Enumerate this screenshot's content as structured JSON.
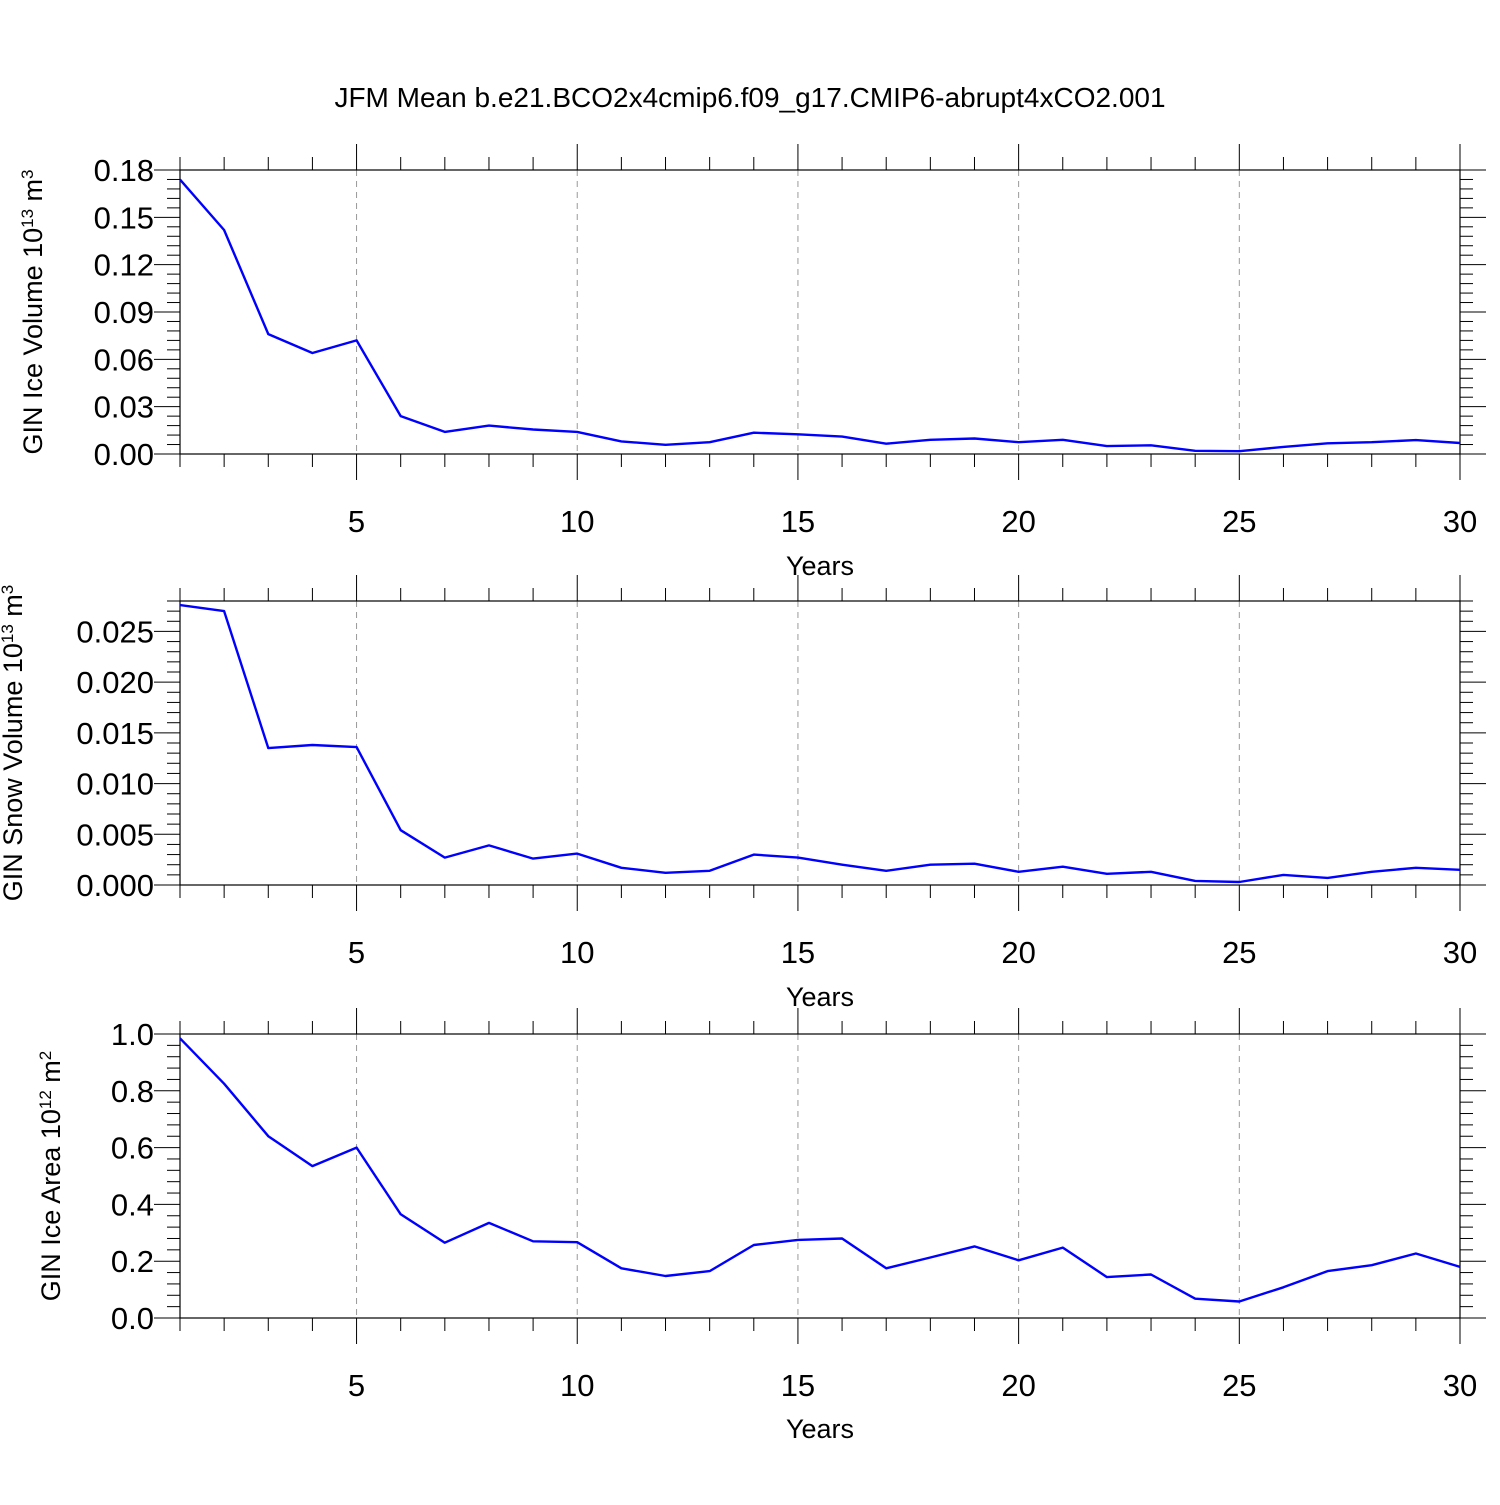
{
  "title": "JFM Mean b.e21.BCO2x4cmip6.f09_g17.CMIP6-abrupt4xCO2.001",
  "colors": {
    "line": "#0000ff",
    "grid": "#9a9a9a",
    "axis": "#000000"
  },
  "chart_data": [
    {
      "type": "line",
      "ylabel": {
        "text": "GIN Ice Volume 10",
        "sup": "13",
        "unit": " m",
        "unit_sup": "3"
      },
      "xlabel": "Years",
      "xlim": [
        1,
        30
      ],
      "ylim": [
        0,
        0.18
      ],
      "yticks": [
        0.0,
        0.03,
        0.06,
        0.09,
        0.12,
        0.15,
        0.18
      ],
      "ytick_labels": [
        "0.00",
        "0.03",
        "0.06",
        "0.09",
        "0.12",
        "0.15",
        "0.18"
      ],
      "xticks": [
        5,
        10,
        15,
        20,
        25,
        30
      ],
      "xtick_labels": [
        "5",
        "10",
        "15",
        "20",
        "25",
        "30"
      ],
      "grid": "x-dashed",
      "x": [
        1,
        2,
        3,
        4,
        5,
        6,
        7,
        8,
        9,
        10,
        11,
        12,
        13,
        14,
        15,
        16,
        17,
        18,
        19,
        20,
        21,
        22,
        23,
        24,
        25,
        26,
        27,
        28,
        29,
        30
      ],
      "values": [
        0.174,
        0.142,
        0.076,
        0.064,
        0.072,
        0.024,
        0.014,
        0.018,
        0.0155,
        0.014,
        0.008,
        0.0058,
        0.0075,
        0.0135,
        0.0125,
        0.011,
        0.0065,
        0.009,
        0.0098,
        0.0075,
        0.009,
        0.005,
        0.0055,
        0.002,
        0.0018,
        0.0045,
        0.0068,
        0.0075,
        0.0088,
        0.007
      ]
    },
    {
      "type": "line",
      "ylabel": {
        "text": "GIN Snow Volume 10",
        "sup": "13",
        "unit": " m",
        "unit_sup": "3"
      },
      "xlabel": "Years",
      "xlim": [
        1,
        30
      ],
      "ylim": [
        0,
        0.028
      ],
      "yticks": [
        0.0,
        0.005,
        0.01,
        0.015,
        0.02,
        0.025
      ],
      "ytick_labels": [
        "0.000",
        "0.005",
        "0.010",
        "0.015",
        "0.020",
        "0.025"
      ],
      "xticks": [
        5,
        10,
        15,
        20,
        25,
        30
      ],
      "xtick_labels": [
        "5",
        "10",
        "15",
        "20",
        "25",
        "30"
      ],
      "grid": "x-dashed",
      "x": [
        1,
        2,
        3,
        4,
        5,
        6,
        7,
        8,
        9,
        10,
        11,
        12,
        13,
        14,
        15,
        16,
        17,
        18,
        19,
        20,
        21,
        22,
        23,
        24,
        25,
        26,
        27,
        28,
        29,
        30
      ],
      "values": [
        0.0276,
        0.027,
        0.0135,
        0.0138,
        0.0136,
        0.0054,
        0.0027,
        0.0039,
        0.0026,
        0.0031,
        0.0017,
        0.0012,
        0.0014,
        0.003,
        0.0027,
        0.002,
        0.0014,
        0.002,
        0.0021,
        0.0013,
        0.0018,
        0.0011,
        0.0013,
        0.0004,
        0.0003,
        0.001,
        0.0007,
        0.0013,
        0.0017,
        0.0015
      ]
    },
    {
      "type": "line",
      "ylabel": {
        "text": "GIN Ice Area 10",
        "sup": "12",
        "unit": " m",
        "unit_sup": "2"
      },
      "xlabel": "Years",
      "xlim": [
        1,
        30
      ],
      "ylim": [
        0,
        1.0
      ],
      "yticks": [
        0.0,
        0.2,
        0.4,
        0.6,
        0.8,
        1.0
      ],
      "ytick_labels": [
        "0.0",
        "0.2",
        "0.4",
        "0.6",
        "0.8",
        "1.0"
      ],
      "xticks": [
        5,
        10,
        15,
        20,
        25,
        30
      ],
      "xtick_labels": [
        "5",
        "10",
        "15",
        "20",
        "25",
        "30"
      ],
      "grid": "x-dashed",
      "x": [
        1,
        2,
        3,
        4,
        5,
        6,
        7,
        8,
        9,
        10,
        11,
        12,
        13,
        14,
        15,
        16,
        17,
        18,
        19,
        20,
        21,
        22,
        23,
        24,
        25,
        26,
        27,
        28,
        29,
        30
      ],
      "values": [
        0.985,
        0.825,
        0.64,
        0.535,
        0.6,
        0.365,
        0.265,
        0.335,
        0.27,
        0.267,
        0.175,
        0.148,
        0.165,
        0.257,
        0.275,
        0.28,
        0.175,
        0.213,
        0.252,
        0.203,
        0.248,
        0.144,
        0.153,
        0.068,
        0.058,
        0.108,
        0.165,
        0.186,
        0.227,
        0.18
      ]
    }
  ]
}
